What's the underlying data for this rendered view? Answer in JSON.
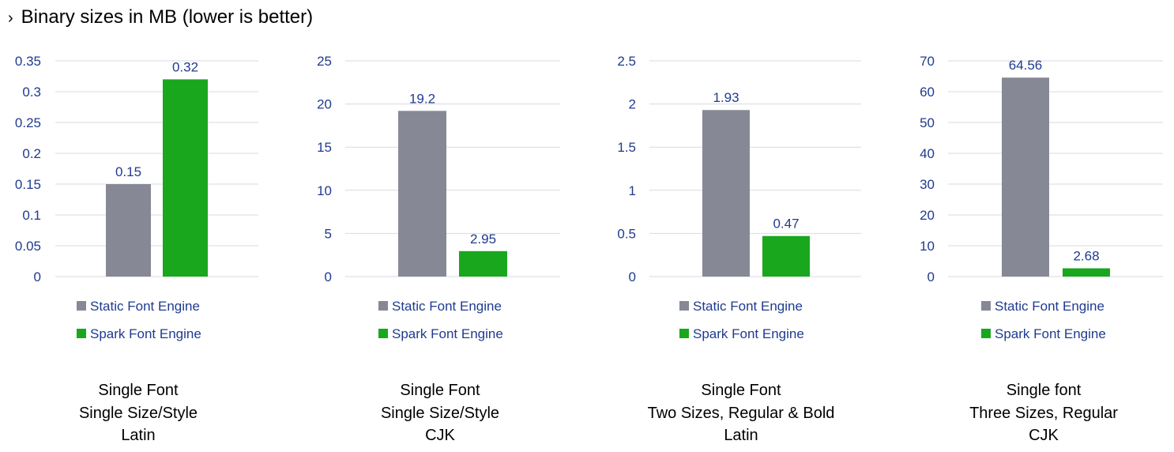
{
  "title": "Binary sizes in MB (lower is better)",
  "title_icon": "chevron-right-icon",
  "colors": {
    "static": "#868995",
    "spark": "#19A71E",
    "tick": "#1F3B8F",
    "label": "#1F3B8F",
    "grid": "#D9D9E3"
  },
  "chart_data": [
    {
      "type": "bar",
      "categories": [
        "Static Font Engine",
        "Spark Font Engine"
      ],
      "values": [
        0.15,
        0.32
      ],
      "value_labels": [
        "0.15",
        "0.32"
      ],
      "ylim": [
        0,
        0.35
      ],
      "yticks": [
        "0",
        "0.05",
        "0.1",
        "0.15",
        "0.2",
        "0.25",
        "0.3",
        "0.35"
      ],
      "legend": [
        "Static Font Engine",
        "Spark Font Engine"
      ],
      "grid": true,
      "caption": [
        "Single Font",
        "Single Size/Style",
        "Latin"
      ]
    },
    {
      "type": "bar",
      "categories": [
        "Static Font Engine",
        "Spark Font Engine"
      ],
      "values": [
        19.2,
        2.95
      ],
      "value_labels": [
        "19.2",
        "2.95"
      ],
      "ylim": [
        0,
        25
      ],
      "yticks": [
        "0",
        "5",
        "10",
        "15",
        "20",
        "25"
      ],
      "legend": [
        "Static Font Engine",
        "Spark Font Engine"
      ],
      "grid": true,
      "caption": [
        "Single Font",
        "Single Size/Style",
        "CJK"
      ]
    },
    {
      "type": "bar",
      "categories": [
        "Static Font Engine",
        "Spark Font Engine"
      ],
      "values": [
        1.93,
        0.47
      ],
      "value_labels": [
        "1.93",
        "0.47"
      ],
      "ylim": [
        0,
        2.5
      ],
      "yticks": [
        "0",
        "0.5",
        "1",
        "1.5",
        "2",
        "2.5"
      ],
      "legend": [
        "Static Font Engine",
        "Spark Font Engine"
      ],
      "grid": true,
      "caption": [
        "Single Font",
        "Two Sizes, Regular & Bold",
        "Latin"
      ]
    },
    {
      "type": "bar",
      "categories": [
        "Static Font Engine",
        "Spark Font Engine"
      ],
      "values": [
        64.56,
        2.68
      ],
      "value_labels": [
        "64.56",
        "2.68"
      ],
      "ylim": [
        0,
        70
      ],
      "yticks": [
        "0",
        "10",
        "20",
        "30",
        "40",
        "50",
        "60",
        "70"
      ],
      "legend": [
        "Static Font Engine",
        "Spark Font Engine"
      ],
      "grid": true,
      "caption": [
        "Single font",
        "Three Sizes, Regular",
        "CJK"
      ]
    }
  ]
}
